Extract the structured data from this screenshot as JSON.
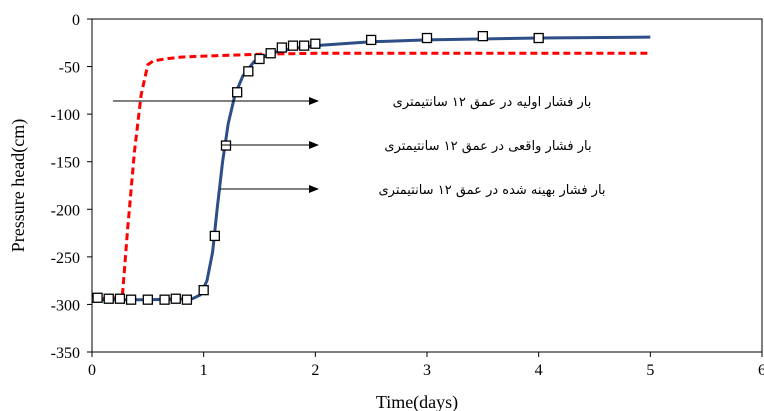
{
  "chart_data": {
    "type": "line",
    "title": "",
    "xlabel": "Time(days)",
    "ylabel": "Pressure head(cm)",
    "xlim": [
      0,
      6
    ],
    "ylim": [
      -350,
      0
    ],
    "xticks": [
      "0",
      "1",
      "2",
      "3",
      "4",
      "5",
      "6"
    ],
    "yticks": [
      "0",
      "-50",
      "-100",
      "-150",
      "-200",
      "-250",
      "-300",
      "-350"
    ],
    "grid": false,
    "series": [
      {
        "name": "بار فشار اولیه در عمق ۱۲ سانتیمتری",
        "style": "dashed",
        "color": "#ff0000",
        "x": [
          0.0,
          0.27,
          0.32,
          0.38,
          0.44,
          0.5,
          0.55,
          0.65,
          0.8,
          1.0,
          1.5,
          2.0,
          3.0,
          4.0,
          5.0
        ],
        "y": [
          -294,
          -293,
          -220,
          -140,
          -80,
          -48,
          -44,
          -42,
          -40,
          -39,
          -37,
          -36,
          -36,
          -36,
          -36
        ]
      },
      {
        "name": "بار فشار واقعی در عمق ۱۲ سانتیمتری",
        "style": "markers",
        "color": "#000000",
        "x": [
          0.05,
          0.15,
          0.25,
          0.35,
          0.5,
          0.65,
          0.75,
          0.85,
          1.0,
          1.1,
          1.2,
          1.3,
          1.4,
          1.5,
          1.6,
          1.7,
          1.8,
          1.9,
          2.0,
          2.5,
          3.0,
          3.5,
          4.0
        ],
        "y": [
          -293,
          -294,
          -294,
          -295,
          -295,
          -295,
          -294,
          -295,
          -285,
          -228,
          -133,
          -77,
          -55,
          -42,
          -36,
          -30,
          -28,
          -28,
          -26,
          -22,
          -20,
          -18,
          -20
        ]
      },
      {
        "name": "بار فشار بهینه شده در عمق ۱۲ سانتیمتری",
        "style": "solid",
        "color": "#2d4e86",
        "x": [
          0.0,
          0.5,
          0.9,
          0.97,
          1.03,
          1.08,
          1.12,
          1.17,
          1.22,
          1.28,
          1.35,
          1.45,
          1.6,
          1.8,
          2.0,
          2.5,
          3.0,
          4.0,
          5.0
        ],
        "y": [
          -295,
          -295,
          -294,
          -290,
          -275,
          -245,
          -200,
          -150,
          -110,
          -80,
          -60,
          -45,
          -36,
          -31,
          -28,
          -24,
          -22,
          -20,
          -19
        ]
      }
    ],
    "annotations": [
      {
        "text": "بار فشار اولیه در عمق ۱۲ سانتیمتری",
        "series": 0
      },
      {
        "text": "بار فشار واقعی در عمق ۱۲ سانتیمتری",
        "series": 1
      },
      {
        "text": "بار فشار بهینه شده در عمق ۱۲ سانتیمتری",
        "series": 2
      }
    ]
  }
}
